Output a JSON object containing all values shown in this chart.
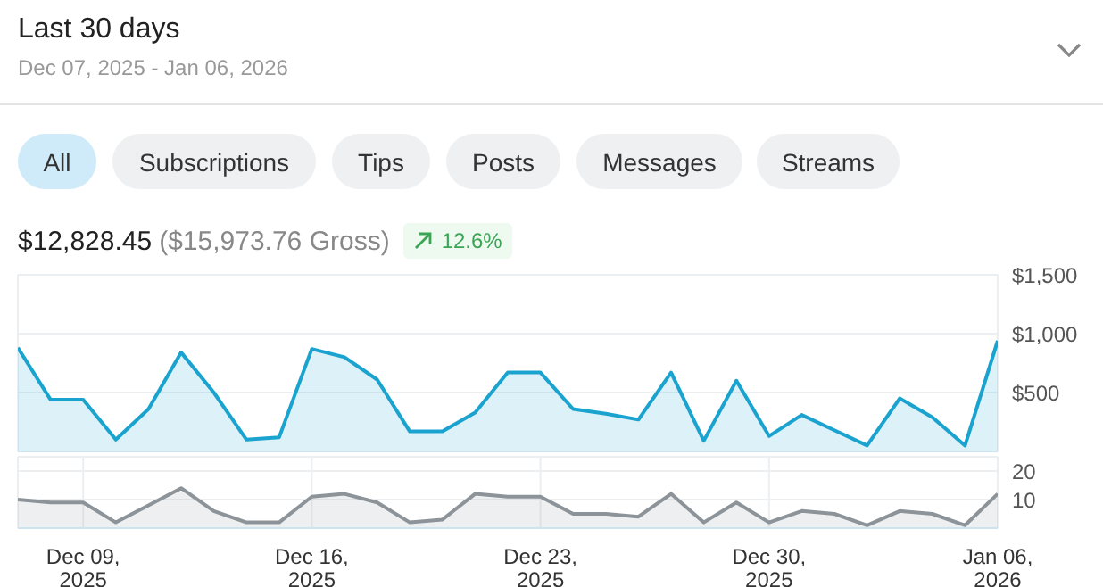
{
  "chart_data": [
    {
      "type": "area",
      "title": "Last 30 days",
      "subtitle": "Dec 07, 2025 - Jan 06, 2026",
      "annotations": [
        "All",
        "Subscriptions",
        "Tips",
        "Posts",
        "Messages",
        "Streams",
        "$12,828.45",
        "($15,973.76 Gross)",
        "12.6%"
      ],
      "x": [
        "2025-12-07",
        "2025-12-08",
        "2025-12-09",
        "2025-12-10",
        "2025-12-11",
        "2025-12-12",
        "2025-12-13",
        "2025-12-14",
        "2025-12-15",
        "2025-12-16",
        "2025-12-17",
        "2025-12-18",
        "2025-12-19",
        "2025-12-20",
        "2025-12-21",
        "2025-12-22",
        "2025-12-23",
        "2025-12-24",
        "2025-12-25",
        "2025-12-26",
        "2025-12-27",
        "2025-12-28",
        "2025-12-29",
        "2025-12-30",
        "2025-12-31",
        "2026-01-01",
        "2026-01-02",
        "2026-01-03",
        "2026-01-04",
        "2026-01-05",
        "2026-01-06"
      ],
      "series": [
        {
          "color": "#1ba3cf",
          "values": [
            880,
            440,
            440,
            100,
            360,
            840,
            500,
            100,
            120,
            870,
            800,
            610,
            170,
            170,
            330,
            670,
            670,
            360,
            320,
            270,
            670,
            90,
            600,
            130,
            310,
            180,
            50,
            450,
            290,
            50,
            940
          ]
        }
      ],
      "xlim": [
        "2025-12-07",
        "2026-01-06"
      ],
      "xticks": [
        "2025-12-09",
        "2025-12-16",
        "2025-12-23",
        "2025-12-30",
        "2026-01-06"
      ],
      "ylim": [
        0,
        1500
      ],
      "yticks": [
        {
          "value": 500,
          "label": "$500"
        },
        {
          "value": 1000,
          "label": "$1,000"
        },
        {
          "value": 1500,
          "label": "$1,500"
        }
      ],
      "grid": true,
      "tick_labels": "y"
    },
    {
      "type": "area",
      "x": [
        "2025-12-07",
        "2025-12-08",
        "2025-12-09",
        "2025-12-10",
        "2025-12-11",
        "2025-12-12",
        "2025-12-13",
        "2025-12-14",
        "2025-12-15",
        "2025-12-16",
        "2025-12-17",
        "2025-12-18",
        "2025-12-19",
        "2025-12-20",
        "2025-12-21",
        "2025-12-22",
        "2025-12-23",
        "2025-12-24",
        "2025-12-25",
        "2025-12-26",
        "2025-12-27",
        "2025-12-28",
        "2025-12-29",
        "2025-12-30",
        "2025-12-31",
        "2026-01-01",
        "2026-01-02",
        "2026-01-03",
        "2026-01-04",
        "2026-01-05",
        "2026-01-06"
      ],
      "series": [
        {
          "color": "#8c9399",
          "values": [
            10,
            9,
            9,
            2,
            8,
            14,
            6,
            2,
            2,
            11,
            12,
            9,
            2,
            3,
            12,
            11,
            11,
            5,
            5,
            4,
            12,
            2,
            9,
            2,
            6,
            5,
            1,
            6,
            5,
            1,
            12
          ]
        }
      ],
      "xlim": [
        "2025-12-07",
        "2026-01-06"
      ],
      "xticks": [
        {
          "value": "2025-12-09",
          "label": "Dec 09, 2025"
        },
        {
          "value": "2025-12-16",
          "label": "Dec 16, 2025"
        },
        {
          "value": "2025-12-23",
          "label": "Dec 23, 2025"
        },
        {
          "value": "2025-12-30",
          "label": "Dec 30, 2025"
        },
        {
          "value": "2026-01-06",
          "label": "Jan 06, 2026"
        }
      ],
      "ylim": [
        0,
        25
      ],
      "yticks": [
        10,
        20
      ],
      "grid": true
    }
  ]
}
